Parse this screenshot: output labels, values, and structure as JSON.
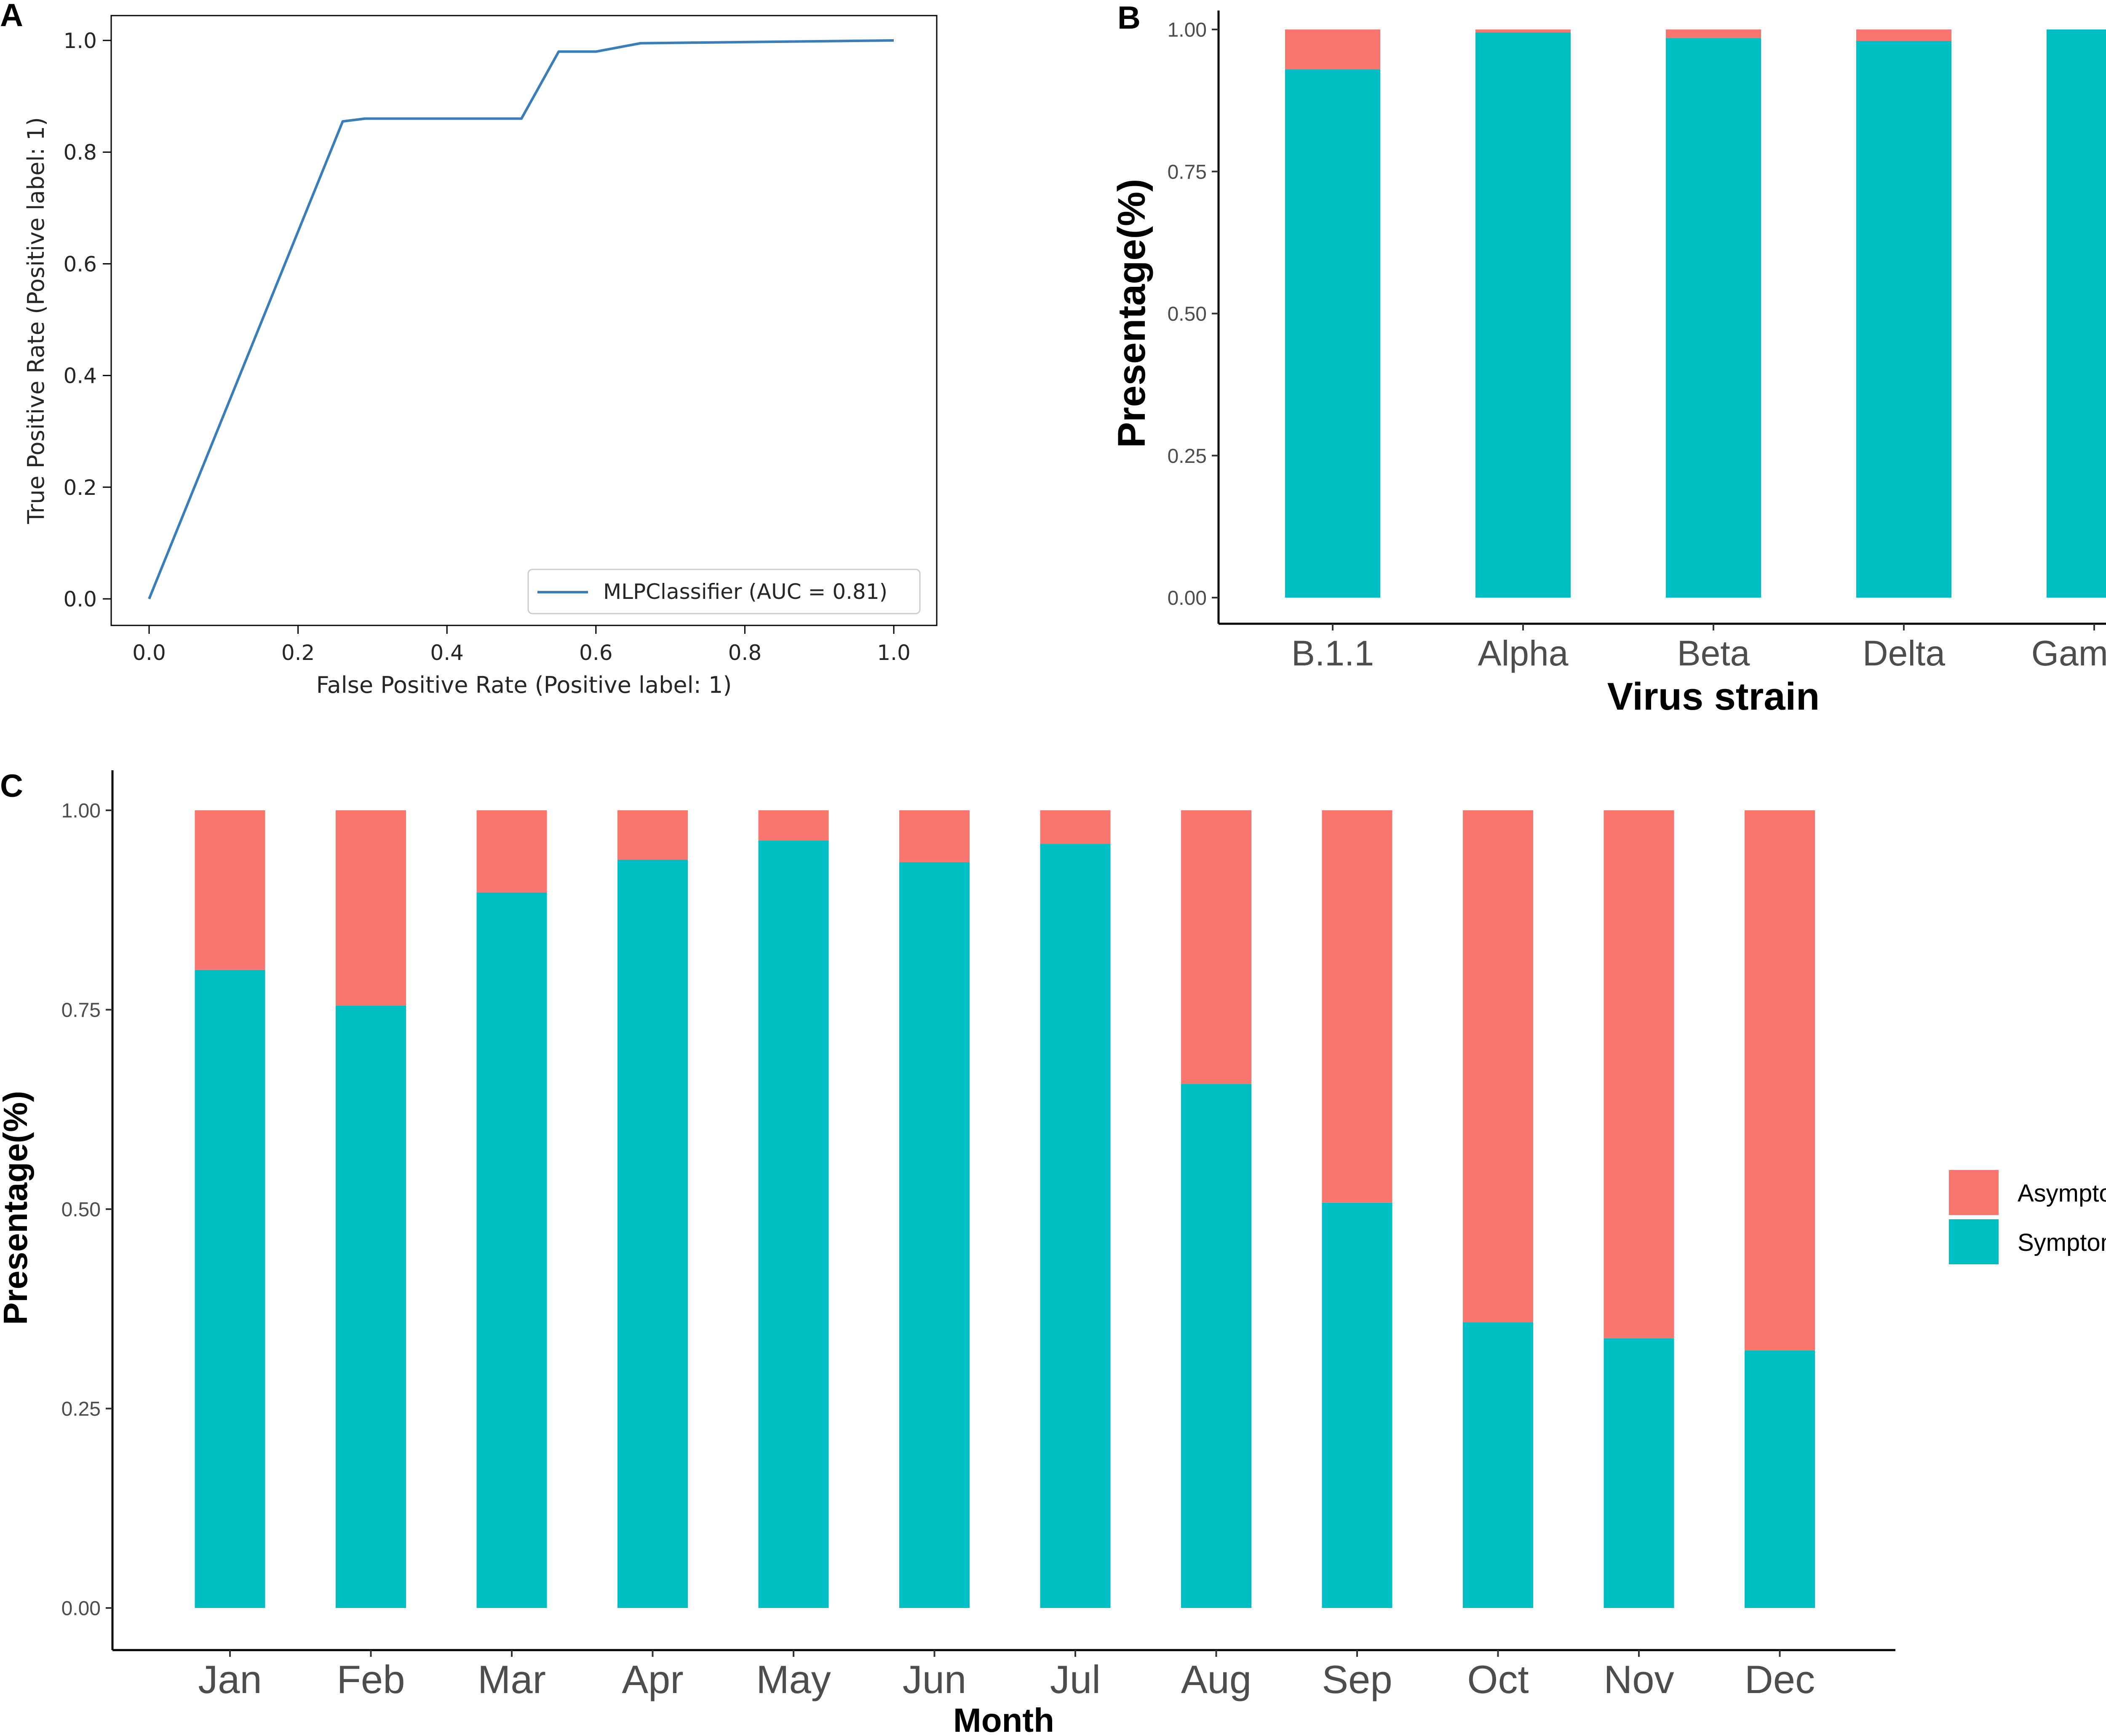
{
  "panels": {
    "a": "A",
    "b": "B",
    "c": "C"
  },
  "colors": {
    "roc_line": "#3b7db7",
    "symptomatic": "#00bfc4",
    "asymptomatic": "#f8766d"
  },
  "chart_data": [
    {
      "id": "A",
      "type": "line",
      "title": "",
      "xlabel": "False Positive Rate (Positive label: 1)",
      "ylabel": "True Positive Rate (Positive label: 1)",
      "xlim": [
        0.0,
        1.0
      ],
      "ylim": [
        0.0,
        1.0
      ],
      "xticks": [
        "0.0",
        "0.2",
        "0.4",
        "0.6",
        "0.8",
        "1.0"
      ],
      "yticks": [
        "0.0",
        "0.2",
        "0.4",
        "0.6",
        "0.8",
        "1.0"
      ],
      "grid": false,
      "legend_position": "bottom-right",
      "series": [
        {
          "name": "MLPClassifier (AUC = 0.81)",
          "x": [
            0.0,
            0.26,
            0.29,
            0.5,
            0.55,
            0.6,
            0.66,
            1.0
          ],
          "y": [
            0.0,
            0.855,
            0.86,
            0.86,
            0.98,
            0.98,
            0.995,
            1.0
          ]
        }
      ]
    },
    {
      "id": "B",
      "type": "bar",
      "stacked": true,
      "title": "",
      "xlabel": "Virus strain",
      "ylabel": "Presentage(%)",
      "categories": [
        "B.1.1",
        "Alpha",
        "Beta",
        "Delta",
        "Gamma"
      ],
      "ylim": [
        0,
        1
      ],
      "yticks": [
        "0.00",
        "0.25",
        "0.50",
        "0.75",
        "1.00"
      ],
      "grid": false,
      "series": [
        {
          "name": "Symptomatic",
          "values": [
            0.93,
            0.995,
            0.985,
            0.98,
            1.0
          ]
        },
        {
          "name": "Asymptomatic",
          "values": [
            0.07,
            0.005,
            0.015,
            0.02,
            0.0
          ]
        }
      ]
    },
    {
      "id": "C",
      "type": "bar",
      "stacked": true,
      "title": "",
      "xlabel": "Month",
      "ylabel": "Presentage(%)",
      "categories": [
        "Jan",
        "Feb",
        "Mar",
        "Apr",
        "May",
        "Jun",
        "Jul",
        "Aug",
        "Sep",
        "Oct",
        "Nov",
        "Dec"
      ],
      "ylim": [
        0,
        1
      ],
      "yticks": [
        "0.00",
        "0.25",
        "0.50",
        "0.75",
        "1.00"
      ],
      "grid": false,
      "legend_position": "right",
      "legend": [
        "Asymptomatic",
        "Symptomatic"
      ],
      "series": [
        {
          "name": "Symptomatic",
          "values": [
            0.8,
            0.755,
            0.897,
            0.938,
            0.962,
            0.935,
            0.958,
            0.657,
            0.508,
            0.358,
            0.338,
            0.323
          ]
        },
        {
          "name": "Asymptomatic",
          "values": [
            0.2,
            0.245,
            0.103,
            0.062,
            0.038,
            0.065,
            0.042,
            0.343,
            0.492,
            0.642,
            0.662,
            0.677
          ]
        }
      ]
    }
  ]
}
